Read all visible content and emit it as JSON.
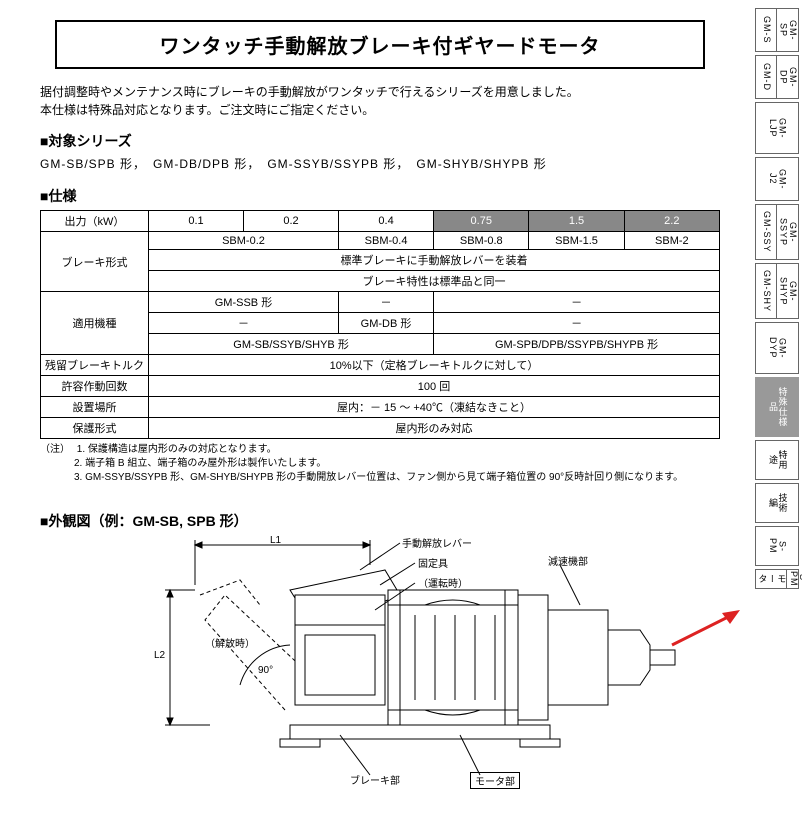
{
  "title": "ワンタッチ手動解放ブレーキ付ギヤードモータ",
  "intro_line1": "据付調整時やメンテナンス時にブレーキの手動解放がワンタッチで行えるシリーズを用意しました。",
  "intro_line2": "本仕様は特殊品対応となります。ご注文時にご指定ください。",
  "sec_target": "■対象シリーズ",
  "target_series": "GM-SB/SPB 形，　GM-DB/DPB 形，　GM-SSYB/SSYPB 形，　GM-SHYB/SHYPB 形",
  "sec_spec": "■仕様",
  "spec": {
    "h_output": "出力（kW）",
    "outputs": [
      "0.1",
      "0.2",
      "0.4",
      "0.75",
      "1.5",
      "2.2"
    ],
    "h_brake": "ブレーキ形式",
    "brake_models": [
      "SBM-0.2",
      "SBM-0.4",
      "SBM-0.8",
      "SBM-1.5",
      "SBM-2"
    ],
    "brake_note1": "標準ブレーキに手動解放レバーを装着",
    "brake_note2": "ブレーキ特性は標準品と同一",
    "h_machine": "適用機種",
    "m_ssb": "GM-SSB 形",
    "m_db": "GM-DB 形",
    "dash": "－",
    "m_sb_group": "GM-SB/SSYB/SHYB 形",
    "m_spb_group": "GM-SPB/DPB/SSYPB/SHYPB 形",
    "h_residual": "残留ブレーキトルク",
    "residual": "10%以下（定格ブレーキトルクに対して）",
    "h_cycles": "許容作動回数",
    "cycles": "100 回",
    "h_location": "設置場所",
    "location": "屋内：－ 15 ～ +40℃（凍結なきこと）",
    "h_protect": "保護形式",
    "protect": "屋内形のみ対応"
  },
  "notes": {
    "label": "（注）",
    "n1": "1. 保護構造は屋内形のみの対応となります。",
    "n2": "2. 端子箱 B 組立、端子箱のみ屋外形は製作いたします。",
    "n3": "3. GM-SSYB/SSYPB 形、GM-SHYB/SHYPB 形の手動開放レバー位置は、ファン側から見て端子箱位置の 90°反時計回り側になります。"
  },
  "sec_outline": "■外観図（例：GM-SB, SPB 形）",
  "diagram": {
    "l1": "L1",
    "l2": "L2",
    "lever": "手動解放レバー",
    "fixture": "固定具",
    "run": "（運転時）",
    "release": "（解放時）",
    "angle": "90°",
    "reducer": "減速機部",
    "brake_part": "ブレーキ部",
    "motor_part": "モータ部",
    "colors": {
      "stroke": "#000000",
      "fill_light": "#f5f5f5"
    }
  },
  "tabs": [
    {
      "cols": [
        "GM-S",
        "GM-SP"
      ],
      "h": 44
    },
    {
      "cols": [
        "GM-D",
        "GM-DP"
      ],
      "h": 44
    },
    {
      "cols": [
        "GM-LJP"
      ],
      "h": 52
    },
    {
      "cols": [
        "GM-J2"
      ],
      "h": 44
    },
    {
      "cols": [
        "GM-SSY",
        "GM-SSYP"
      ],
      "h": 56
    },
    {
      "cols": [
        "GM-SHY",
        "GM-SHYP"
      ],
      "h": 56
    },
    {
      "cols": [
        "GM-DYP"
      ],
      "h": 52
    },
    {
      "cols": [
        "特殊仕様品"
      ],
      "h": 60,
      "active": true
    },
    {
      "cols": [
        "特用途"
      ],
      "h": 40
    },
    {
      "cols": [
        "技術編"
      ],
      "h": 40
    },
    {
      "cols": [
        "S-PM"
      ],
      "h": 40
    },
    {
      "cols": [
        "モータ",
        "S-PM"
      ],
      "h": 20
    }
  ],
  "arrow_color": "#d22"
}
